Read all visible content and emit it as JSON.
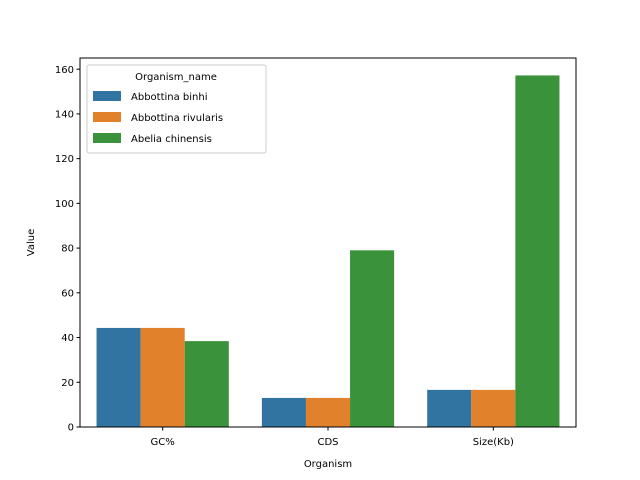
{
  "chart_data": {
    "type": "bar",
    "categories": [
      "GC%",
      "CDS",
      "Size(Kb)"
    ],
    "series": [
      {
        "name": "Abbottina binhi",
        "color": "#3274a1",
        "values": [
          44.3,
          13,
          16.6
        ]
      },
      {
        "name": "Abbottina rivularis",
        "color": "#e1812c",
        "values": [
          44.3,
          13,
          16.6
        ]
      },
      {
        "name": "Abelia chinensis",
        "color": "#3a923a",
        "values": [
          38.4,
          79,
          157.2
        ]
      }
    ],
    "xlabel": "Organism",
    "ylabel": "Value",
    "ylim": [
      0,
      165
    ],
    "yticks": [
      0,
      20,
      40,
      60,
      80,
      100,
      120,
      140,
      160
    ],
    "ytick_labels": [
      "0",
      "20",
      "40",
      "60",
      "80",
      "100",
      "120",
      "140",
      "160"
    ],
    "legend": {
      "title": "Organism_name",
      "position": "top-left"
    },
    "grid": false
  }
}
